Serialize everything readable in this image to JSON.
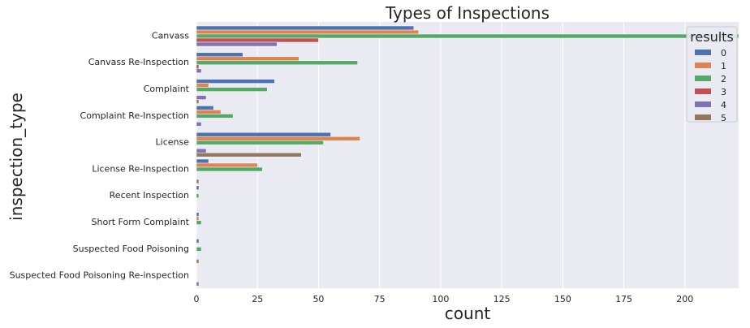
{
  "chart_data": {
    "type": "bar",
    "orientation": "horizontal",
    "title": "Types of Inspections",
    "xlabel": "count",
    "ylabel": "inspection_type",
    "xlim": [
      0,
      222
    ],
    "xticks": [
      0,
      25,
      50,
      75,
      100,
      125,
      150,
      175,
      200
    ],
    "grid": true,
    "legend": {
      "title": "results",
      "placement": "top-right"
    },
    "categories": [
      "Canvass",
      "Canvass Re-Inspection",
      "Complaint",
      "Complaint Re-Inspection",
      "License",
      "License Re-Inspection",
      "Recent Inspection",
      "Short Form Complaint",
      "Suspected Food Poisoning",
      "Suspected Food Poisoning Re-inspection"
    ],
    "series": [
      {
        "name": "0",
        "color": "#4c72b0",
        "values": [
          89,
          19,
          32,
          7,
          55,
          5,
          1,
          1,
          1,
          0
        ]
      },
      {
        "name": "1",
        "color": "#dd8452",
        "values": [
          91,
          42,
          5,
          10,
          67,
          25,
          0,
          1,
          0,
          0
        ]
      },
      {
        "name": "2",
        "color": "#55a868",
        "values": [
          222,
          66,
          29,
          15,
          52,
          27,
          1,
          2,
          2,
          0
        ]
      },
      {
        "name": "3",
        "color": "#c44e52",
        "values": [
          50,
          1,
          0,
          0,
          0,
          0,
          0,
          0,
          0,
          0
        ]
      },
      {
        "name": "4",
        "color": "#8172b3",
        "values": [
          33,
          2,
          4,
          2,
          4,
          0,
          0,
          0,
          0,
          1
        ]
      },
      {
        "name": "5",
        "color": "#937860",
        "values": [
          0,
          0,
          1,
          0,
          43,
          1,
          0,
          0,
          1,
          0
        ]
      }
    ]
  }
}
